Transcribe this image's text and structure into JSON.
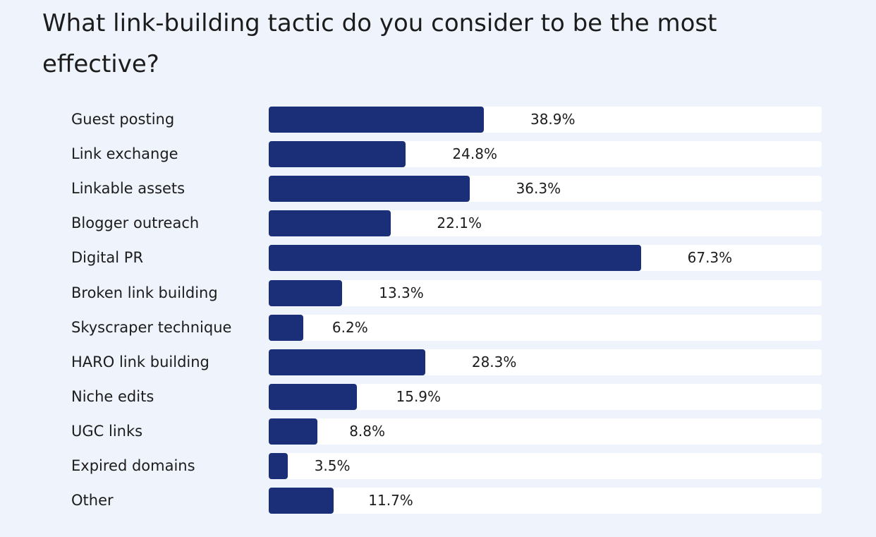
{
  "chart_data": {
    "type": "bar",
    "orientation": "horizontal",
    "title": "What link-building tactic do you consider to be the most effective?",
    "categories": [
      "Guest posting",
      "Link exchange",
      "Linkable assets",
      "Blogger outreach",
      "Digital PR",
      "Broken link building",
      "Skyscraper technique",
      "HARO link building",
      "Niche edits",
      "UGC links",
      "Expired domains",
      "Other"
    ],
    "values": [
      38.9,
      24.8,
      36.3,
      22.1,
      67.3,
      13.3,
      6.2,
      28.3,
      15.9,
      8.8,
      3.5,
      11.7
    ],
    "labels": [
      "38.9%",
      "24.8%",
      "36.3%",
      "22.1%",
      "67.3%",
      "13.3%",
      "6.2%",
      "28.3%",
      "15.9%",
      "8.8%",
      "3.5%",
      "11.7%"
    ],
    "xlim": [
      0,
      100
    ],
    "unit": "%",
    "grid": false,
    "bar_color": "#1a2f78"
  }
}
